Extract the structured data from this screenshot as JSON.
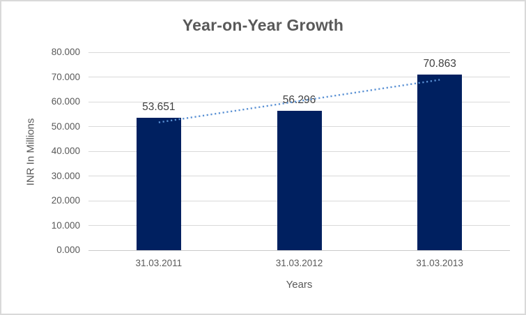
{
  "chart_data": {
    "type": "bar",
    "title": "Year-on-Year Growth",
    "categories": [
      "31.03.2011",
      "31.03.2012",
      "31.03.2013"
    ],
    "values": [
      53.651,
      56.296,
      70.863
    ],
    "data_labels": [
      "53.651",
      "56.296",
      "70.863"
    ],
    "xlabel": "Years",
    "ylabel": "INR In Millions",
    "ylim": [
      0,
      80
    ],
    "ytick_step": 10,
    "ytick_labels": [
      "0.000",
      "10.000",
      "20.000",
      "30.000",
      "40.000",
      "50.000",
      "60.000",
      "70.000",
      "80.000"
    ],
    "grid": true,
    "legend": "none",
    "trendline": {
      "type": "linear",
      "style": "dotted"
    },
    "colors": {
      "bar": "#002060",
      "trendline": "#5a91d4",
      "gridline": "#d9d9d9",
      "axis_line": "#c9c9c9",
      "axis_text": "#595959",
      "data_label_text": "#404040",
      "frame_border": "#d9d9d9",
      "background": "#ffffff"
    }
  }
}
